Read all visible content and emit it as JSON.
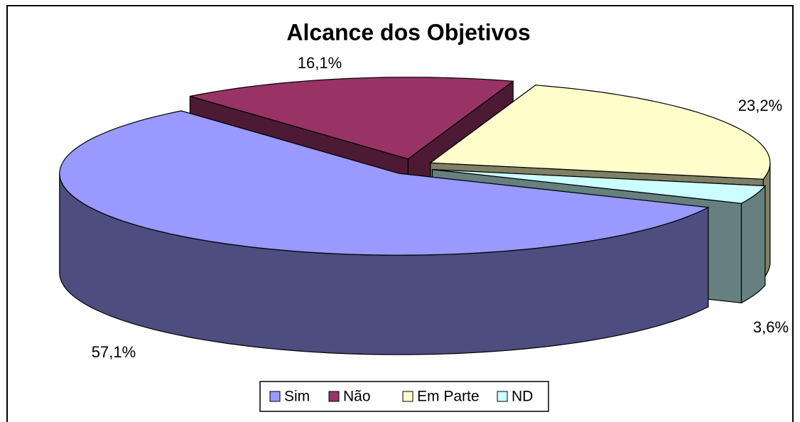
{
  "chart_data": {
    "type": "pie3d",
    "title": "Alcance dos Objetivos",
    "series": [
      {
        "name": "Sim",
        "color": "#9999ff",
        "values": [
          57.1
        ],
        "value_labels": [
          "57,1%"
        ]
      },
      {
        "name": "Não",
        "color": "#993366",
        "values": [
          16.1
        ],
        "value_labels": [
          "16,1%"
        ]
      },
      {
        "name": "Em Parte",
        "color": "#ffffcc",
        "values": [
          23.2
        ],
        "value_labels": [
          "23,2%"
        ]
      },
      {
        "name": "ND",
        "color": "#ccffff",
        "values": [
          3.6
        ],
        "value_labels": [
          "3,6%"
        ]
      }
    ],
    "legend": "bottom"
  }
}
